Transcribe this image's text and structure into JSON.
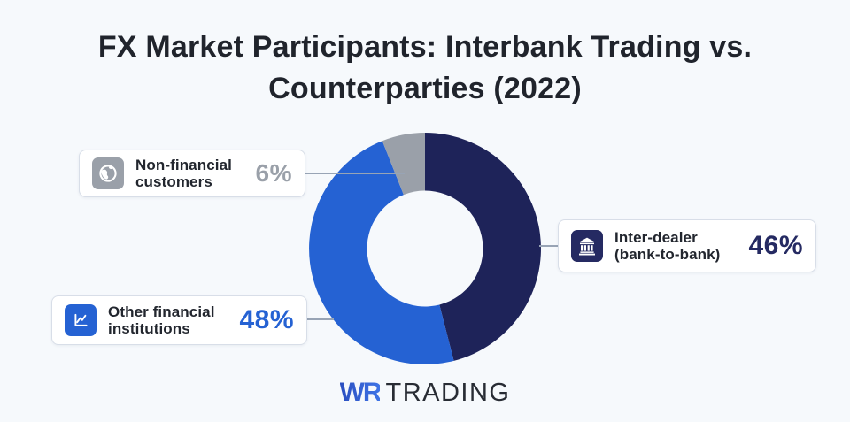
{
  "title": "FX Market Participants: Interbank Trading vs. Counterparties (2022)",
  "background_color": "#f6f9fc",
  "connector_color": "#98a4b5",
  "chart_data": {
    "type": "pie",
    "donut": true,
    "title": "FX Market Participants: Interbank Trading vs. Counterparties (2022)",
    "unit": "%",
    "start_angle_deg": 0,
    "direction": "clockwise",
    "inner_radius_ratio": 0.5,
    "legend_position": "callout-cards",
    "segments": [
      {
        "label": "Inter-dealer (bank-to-bank)",
        "value": 46,
        "color": "#1e2359"
      },
      {
        "label": "Other financial institutions",
        "value": 48,
        "color": "#2562d3"
      },
      {
        "label": "Non-financial customers",
        "value": 6,
        "color": "#9aa0a9"
      }
    ]
  },
  "labels": [
    {
      "id": "non-financial",
      "line1": "Non-financial",
      "line2": "customers",
      "value": "6%",
      "icon": "globe-icon",
      "accent": "#9aa0a9"
    },
    {
      "id": "inter-dealer",
      "line1": "Inter-dealer",
      "line2": "(bank-to-bank)",
      "value": "46%",
      "icon": "bank-icon",
      "accent": "#252a62"
    },
    {
      "id": "other-financial",
      "line1": "Other financial",
      "line2": "institutions",
      "value": "48%",
      "icon": "line-chart-icon",
      "accent": "#2562d3"
    }
  ],
  "logo": {
    "wr": "WR",
    "trading": "TRADING",
    "wr_color_from": "#2b4fc0",
    "wr_color_to": "#3f74e6",
    "trading_color": "#282c34"
  }
}
